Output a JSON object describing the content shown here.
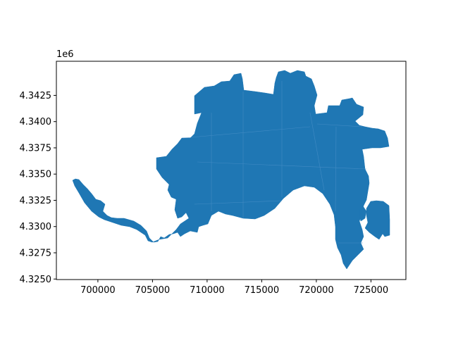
{
  "chart_data": {
    "type": "map",
    "title": "",
    "xlabel": "",
    "ylabel": "",
    "offset_text": "1e6",
    "xlim": [
      696200,
      728200
    ],
    "ylim": [
      4.32495,
      4.34575
    ],
    "x_ticks": [
      {
        "value": 700000,
        "label": "700000"
      },
      {
        "value": 705000,
        "label": "705000"
      },
      {
        "value": 710000,
        "label": "710000"
      },
      {
        "value": 715000,
        "label": "715000"
      },
      {
        "value": 720000,
        "label": "720000"
      },
      {
        "value": 725000,
        "label": "725000"
      }
    ],
    "y_ticks": [
      {
        "value": 4.325,
        "label": "4.3250"
      },
      {
        "value": 4.3275,
        "label": "4.3275"
      },
      {
        "value": 4.33,
        "label": "4.3300"
      },
      {
        "value": 4.3325,
        "label": "4.3325"
      },
      {
        "value": 4.335,
        "label": "4.3350"
      },
      {
        "value": 4.3375,
        "label": "4.3375"
      },
      {
        "value": 4.34,
        "label": "4.3400"
      },
      {
        "value": 4.3425,
        "label": "4.3425"
      }
    ],
    "fill_color": "#1f77b4",
    "edge_color": "#4a90c8",
    "grid": false,
    "legend": "none"
  }
}
